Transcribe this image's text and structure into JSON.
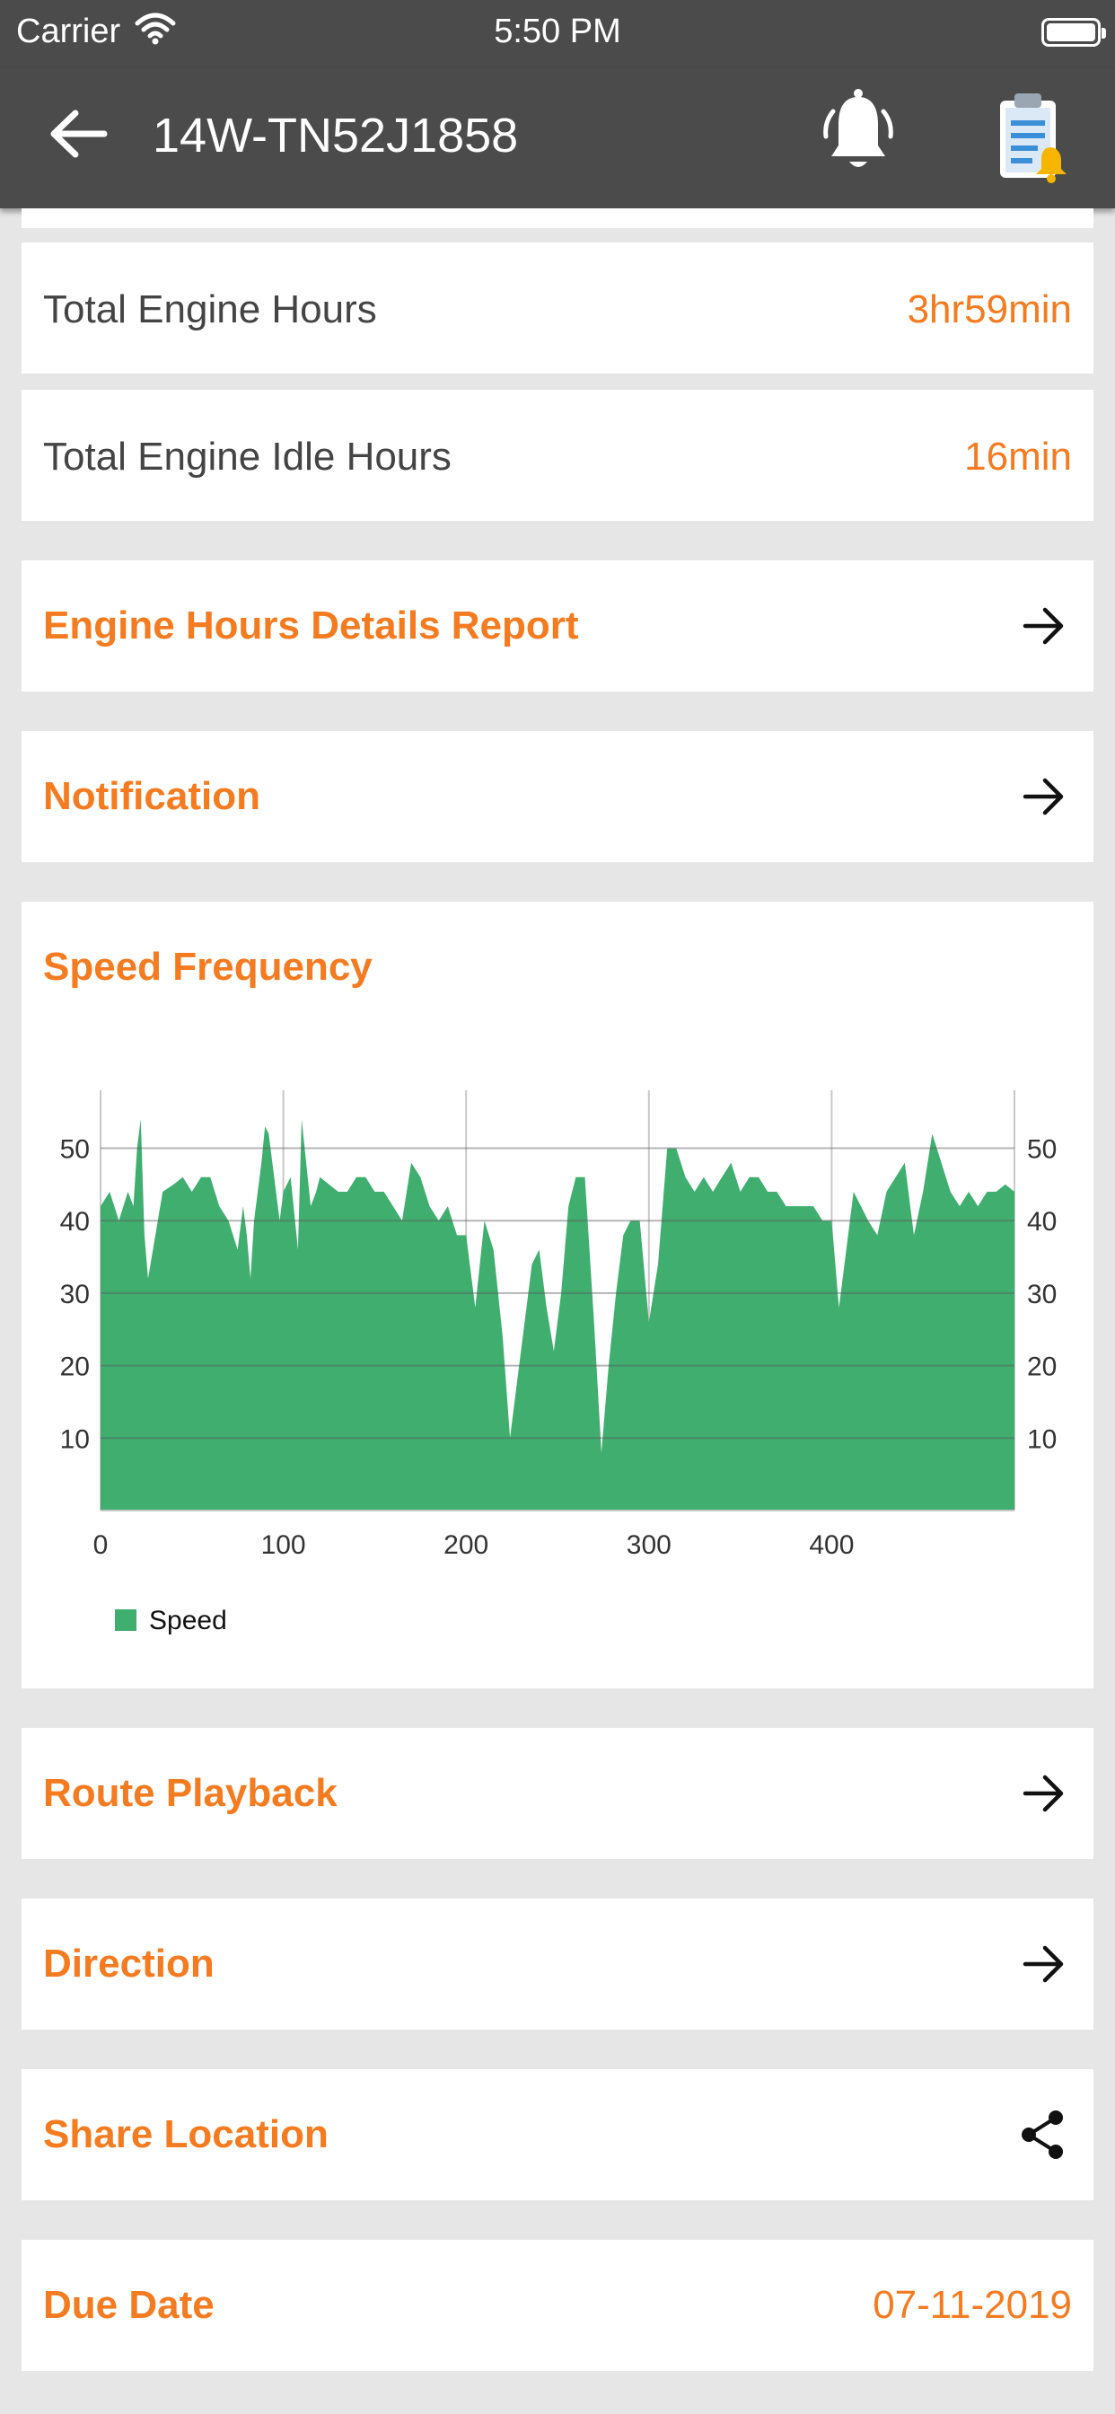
{
  "status_bar": {
    "carrier": "Carrier",
    "time": "5:50 PM"
  },
  "header": {
    "title": "14W-TN52J1858"
  },
  "rows": {
    "total_engine_hours": {
      "label": "Total Engine Hours",
      "value": "3hr59min"
    },
    "total_engine_idle_hours": {
      "label": "Total Engine Idle Hours",
      "value": "16min"
    }
  },
  "links": {
    "engine_hours_report": "Engine Hours Details Report",
    "notification": "Notification",
    "route_playback": "Route Playback",
    "direction": "Direction",
    "share_location": "Share Location"
  },
  "due_date": {
    "label": "Due Date",
    "value": "07-11-2019"
  },
  "chart_title": "Speed Frequency",
  "colors": {
    "accent": "#f47b20",
    "header_bg": "#4b4b4b",
    "series": "#3fae6f"
  },
  "chart_data": {
    "type": "area",
    "title": "",
    "xlabel": "",
    "ylabel": "",
    "xlim": [
      0,
      500
    ],
    "ylim": [
      0,
      58
    ],
    "x_ticks": [
      "0",
      "100",
      "200",
      "300",
      "400"
    ],
    "y_ticks": [
      "10",
      "20",
      "30",
      "40",
      "50"
    ],
    "grid": true,
    "legend": "bottom-left",
    "series": [
      {
        "name": "Speed",
        "x": [
          0,
          5,
          10,
          15,
          18,
          20,
          22,
          24,
          26,
          30,
          34,
          40,
          45,
          50,
          55,
          60,
          65,
          70,
          75,
          78,
          80,
          82,
          84,
          86,
          88,
          90,
          92,
          95,
          98,
          100,
          104,
          108,
          110,
          115,
          118,
          120,
          125,
          130,
          135,
          140,
          145,
          150,
          155,
          160,
          165,
          170,
          175,
          180,
          185,
          190,
          195,
          200,
          205,
          210,
          215,
          220,
          224,
          228,
          232,
          236,
          240,
          244,
          248,
          252,
          256,
          260,
          265,
          270,
          274,
          278,
          282,
          286,
          290,
          295,
          300,
          305,
          310,
          315,
          320,
          325,
          330,
          335,
          340,
          345,
          350,
          355,
          360,
          365,
          370,
          375,
          380,
          385,
          390,
          395,
          400,
          404,
          408,
          412,
          416,
          420,
          425,
          430,
          435,
          440,
          445,
          450,
          455,
          460,
          465,
          470,
          475,
          480,
          485,
          490,
          495,
          500
        ],
        "y": [
          42,
          44,
          40,
          44,
          42,
          50,
          54,
          38,
          32,
          38,
          44,
          45,
          46,
          44,
          46,
          46,
          42,
          40,
          36,
          42,
          38,
          32,
          40,
          44,
          48,
          53,
          52,
          46,
          40,
          44,
          46,
          36,
          54,
          42,
          44,
          46,
          45,
          44,
          44,
          46,
          46,
          44,
          44,
          42,
          40,
          48,
          46,
          42,
          40,
          42,
          38,
          38,
          28,
          40,
          36,
          24,
          10,
          18,
          26,
          34,
          36,
          28,
          22,
          30,
          42,
          46,
          46,
          26,
          8,
          20,
          30,
          38,
          40,
          40,
          26,
          34,
          50,
          50,
          46,
          44,
          46,
          44,
          46,
          48,
          44,
          46,
          46,
          44,
          44,
          42,
          42,
          42,
          42,
          40,
          40,
          28,
          36,
          44,
          42,
          40,
          38,
          44,
          46,
          48,
          38,
          44,
          52,
          48,
          44,
          42,
          44,
          42,
          44,
          44,
          45,
          44
        ]
      }
    ]
  }
}
